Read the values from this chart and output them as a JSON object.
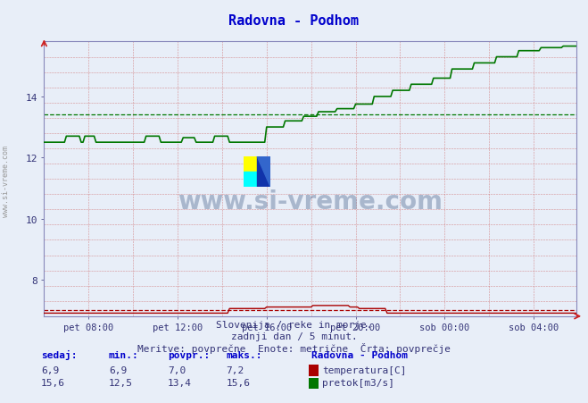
{
  "title": "Radovna - Podhom",
  "bg_color": "#e8eef8",
  "plot_bg_color": "#e8eef8",
  "xlabel_ticks": [
    "pet 08:00",
    "pet 12:00",
    "pet 16:00",
    "pet 20:00",
    "sob 00:00",
    "sob 04:00"
  ],
  "ylabel_major": [
    8,
    10,
    12,
    14
  ],
  "ymin": 6.8,
  "ymax": 15.8,
  "xmin": 0,
  "xmax": 287,
  "subtitle1": "Slovenija / reke in morje.",
  "subtitle2": "zadnji dan / 5 minut.",
  "subtitle3": "Meritve: povprečne  Enote: metrične  Črta: povprečje",
  "temp_color": "#aa0000",
  "flow_color": "#007700",
  "avg_temp": 7.0,
  "avg_flow": 13.4,
  "watermark": "www.si-vreme.com",
  "tick_x": [
    24,
    72,
    120,
    168,
    216,
    264
  ]
}
